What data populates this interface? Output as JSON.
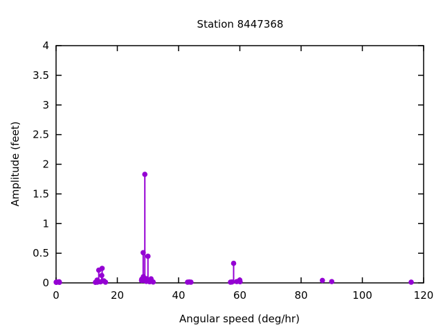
{
  "chart_data": {
    "type": "scatter",
    "style": "impulses+points",
    "title": "Station 8447368",
    "xlabel": "Angular speed (deg/hr)",
    "ylabel": "Amplitude (feet)",
    "xlim": [
      0,
      120
    ],
    "ylim": [
      0,
      4
    ],
    "xticks": [
      0,
      20,
      40,
      60,
      80,
      100,
      120
    ],
    "xtick_labels": [
      "0",
      "20",
      "40",
      "60",
      "80",
      "100",
      "120"
    ],
    "yticks": [
      0,
      0.5,
      1,
      1.5,
      2,
      2.5,
      3,
      3.5,
      4
    ],
    "ytick_labels": [
      "0",
      "0.5",
      "1",
      "1.5",
      "2",
      "2.5",
      "3",
      "3.5",
      "4"
    ],
    "grid": false,
    "legend": "none",
    "point_color": "#9400d3",
    "axis_color": "#000000",
    "background_color": "#ffffff",
    "points": [
      [
        0.04,
        0.012
      ],
      [
        0.08,
        0.01
      ],
      [
        0.54,
        0.016
      ],
      [
        1.02,
        0.018
      ],
      [
        1.1,
        0.01
      ],
      [
        12.85,
        0.01
      ],
      [
        13.4,
        0.048
      ],
      [
        13.47,
        0.012
      ],
      [
        13.94,
        0.215
      ],
      [
        14.49,
        0.018
      ],
      [
        14.92,
        0.125
      ],
      [
        15.04,
        0.245
      ],
      [
        15.58,
        0.035
      ],
      [
        16.14,
        0.012
      ],
      [
        27.9,
        0.042
      ],
      [
        27.97,
        0.062
      ],
      [
        28.44,
        0.51
      ],
      [
        28.51,
        0.105
      ],
      [
        28.98,
        1.83
      ],
      [
        29.46,
        0.025
      ],
      [
        29.53,
        0.07
      ],
      [
        29.96,
        0.035
      ],
      [
        30.0,
        0.45
      ],
      [
        30.08,
        0.042
      ],
      [
        30.54,
        0.02
      ],
      [
        31.02,
        0.068
      ],
      [
        31.7,
        0.015
      ],
      [
        42.93,
        0.012
      ],
      [
        43.48,
        0.015
      ],
      [
        44.03,
        0.012
      ],
      [
        56.95,
        0.012
      ],
      [
        57.42,
        0.015
      ],
      [
        57.97,
        0.33
      ],
      [
        58.98,
        0.022
      ],
      [
        59.97,
        0.048
      ],
      [
        60.08,
        0.02
      ],
      [
        86.95,
        0.042
      ],
      [
        90.0,
        0.022
      ],
      [
        115.94,
        0.012
      ]
    ]
  }
}
